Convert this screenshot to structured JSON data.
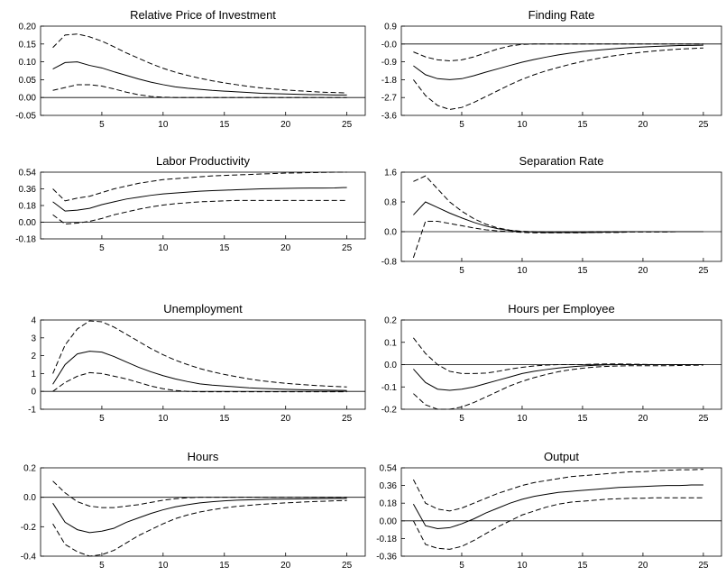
{
  "chart_data": [
    {
      "type": "line",
      "title": "Relative Price of Investment",
      "x": [
        1,
        2,
        3,
        4,
        5,
        6,
        7,
        8,
        9,
        10,
        11,
        12,
        13,
        14,
        15,
        16,
        17,
        18,
        19,
        20,
        21,
        22,
        23,
        24,
        25
      ],
      "series": [
        {
          "values": [
            0.08,
            0.098,
            0.1,
            0.09,
            0.083,
            0.072,
            0.062,
            0.052,
            0.043,
            0.036,
            0.03,
            0.026,
            0.023,
            0.02,
            0.018,
            0.016,
            0.014,
            0.012,
            0.011,
            0.01,
            0.009,
            0.008,
            0.008,
            0.007,
            0.007
          ],
          "style": "solid"
        },
        {
          "values": [
            0.14,
            0.175,
            0.178,
            0.17,
            0.158,
            0.142,
            0.125,
            0.11,
            0.095,
            0.082,
            0.071,
            0.062,
            0.054,
            0.047,
            0.041,
            0.036,
            0.031,
            0.027,
            0.024,
            0.021,
            0.019,
            0.017,
            0.015,
            0.014,
            0.013
          ],
          "style": "dashed"
        },
        {
          "values": [
            0.02,
            0.028,
            0.036,
            0.036,
            0.032,
            0.024,
            0.015,
            0.008,
            0.003,
            0.001,
            0.0,
            0.0,
            0.0,
            0.0,
            0.0,
            0.0,
            0.0,
            0.0,
            0.0,
            0.0,
            0.0,
            0.0,
            0.0,
            0.0,
            0.0
          ],
          "style": "dashed"
        }
      ],
      "ylim": [
        -0.05,
        0.2
      ],
      "yticks": [
        "0.20",
        "0.15",
        "0.10",
        "0.05",
        "0.00",
        "-0.05"
      ],
      "xticks": [
        "5",
        "10",
        "15",
        "20",
        "25"
      ]
    },
    {
      "type": "line",
      "title": "Finding Rate",
      "x": [
        1,
        2,
        3,
        4,
        5,
        6,
        7,
        8,
        9,
        10,
        11,
        12,
        13,
        14,
        15,
        16,
        17,
        18,
        19,
        20,
        21,
        22,
        23,
        24,
        25
      ],
      "series": [
        {
          "values": [
            -1.1,
            -1.55,
            -1.75,
            -1.8,
            -1.75,
            -1.6,
            -1.42,
            -1.25,
            -1.08,
            -0.92,
            -0.78,
            -0.66,
            -0.55,
            -0.46,
            -0.38,
            -0.32,
            -0.27,
            -0.22,
            -0.18,
            -0.15,
            -0.12,
            -0.1,
            -0.08,
            -0.07,
            -0.06
          ],
          "style": "solid"
        },
        {
          "values": [
            -1.8,
            -2.6,
            -3.1,
            -3.3,
            -3.2,
            -2.95,
            -2.65,
            -2.35,
            -2.05,
            -1.78,
            -1.55,
            -1.35,
            -1.18,
            -1.02,
            -0.88,
            -0.76,
            -0.65,
            -0.56,
            -0.48,
            -0.41,
            -0.35,
            -0.3,
            -0.26,
            -0.23,
            -0.2
          ],
          "style": "dashed"
        },
        {
          "values": [
            -0.4,
            -0.65,
            -0.8,
            -0.85,
            -0.8,
            -0.65,
            -0.45,
            -0.25,
            -0.1,
            -0.02,
            0.0,
            0.0,
            0.0,
            0.0,
            0.0,
            0.0,
            0.0,
            0.0,
            0.0,
            0.0,
            0.0,
            0.0,
            0.0,
            0.0,
            0.0
          ],
          "style": "dashed"
        }
      ],
      "ylim": [
        -3.6,
        0.9
      ],
      "yticks": [
        "0.9",
        "-0.0",
        "-0.9",
        "-1.8",
        "-2.7",
        "-3.6"
      ],
      "xticks": [
        "5",
        "10",
        "15",
        "20",
        "25"
      ]
    },
    {
      "type": "line",
      "title": "Labor Productivity",
      "x": [
        1,
        2,
        3,
        4,
        5,
        6,
        7,
        8,
        9,
        10,
        11,
        12,
        13,
        14,
        15,
        16,
        17,
        18,
        19,
        20,
        21,
        22,
        23,
        24,
        25
      ],
      "series": [
        {
          "values": [
            0.22,
            0.12,
            0.13,
            0.15,
            0.19,
            0.22,
            0.25,
            0.27,
            0.29,
            0.305,
            0.315,
            0.325,
            0.335,
            0.34,
            0.345,
            0.35,
            0.355,
            0.36,
            0.362,
            0.365,
            0.367,
            0.368,
            0.369,
            0.37,
            0.375
          ],
          "style": "solid"
        },
        {
          "values": [
            0.36,
            0.23,
            0.26,
            0.28,
            0.32,
            0.36,
            0.39,
            0.42,
            0.44,
            0.46,
            0.47,
            0.48,
            0.49,
            0.5,
            0.505,
            0.51,
            0.515,
            0.52,
            0.525,
            0.53,
            0.532,
            0.535,
            0.537,
            0.54,
            0.54
          ],
          "style": "dashed"
        },
        {
          "values": [
            0.08,
            -0.02,
            -0.01,
            0.01,
            0.04,
            0.08,
            0.11,
            0.14,
            0.165,
            0.185,
            0.2,
            0.21,
            0.22,
            0.225,
            0.23,
            0.235,
            0.235,
            0.235,
            0.235,
            0.235,
            0.235,
            0.235,
            0.235,
            0.235,
            0.235
          ],
          "style": "dashed"
        }
      ],
      "ylim": [
        -0.18,
        0.54
      ],
      "yticks": [
        "0.54",
        "0.36",
        "0.18",
        "0.00",
        "-0.18"
      ],
      "xticks": [
        "5",
        "10",
        "15",
        "20",
        "25"
      ]
    },
    {
      "type": "line",
      "title": "Separation Rate",
      "x": [
        1,
        2,
        3,
        4,
        5,
        6,
        7,
        8,
        9,
        10,
        11,
        12,
        13,
        14,
        15,
        16,
        17,
        18,
        19,
        20,
        21,
        22,
        23,
        24,
        25
      ],
      "series": [
        {
          "values": [
            0.45,
            0.8,
            0.65,
            0.5,
            0.37,
            0.25,
            0.15,
            0.08,
            0.03,
            0.0,
            -0.01,
            -0.02,
            -0.02,
            -0.02,
            -0.02,
            -0.02,
            -0.01,
            -0.01,
            0.0,
            0.0,
            0.0,
            0.0,
            0.0,
            0.0,
            0.0
          ],
          "style": "solid"
        },
        {
          "values": [
            1.35,
            1.5,
            1.15,
            0.8,
            0.55,
            0.35,
            0.2,
            0.1,
            0.04,
            0.01,
            0.0,
            -0.01,
            -0.01,
            -0.01,
            -0.01,
            0.0,
            0.0,
            0.0,
            0.0,
            0.0,
            0.0,
            0.0,
            0.0,
            0.0,
            0.0
          ],
          "style": "dashed"
        },
        {
          "values": [
            -0.7,
            0.28,
            0.28,
            0.22,
            0.16,
            0.1,
            0.05,
            0.02,
            0.0,
            -0.02,
            -0.03,
            -0.03,
            -0.03,
            -0.03,
            -0.03,
            -0.02,
            -0.02,
            -0.02,
            -0.01,
            -0.01,
            -0.01,
            -0.01,
            0.0,
            0.0,
            0.0
          ],
          "style": "dashed"
        }
      ],
      "ylim": [
        -0.8,
        1.6
      ],
      "yticks": [
        "1.6",
        "0.8",
        "0.0",
        "-0.8"
      ],
      "xticks": [
        "5",
        "10",
        "15",
        "20",
        "25"
      ]
    },
    {
      "type": "line",
      "title": "Unemployment",
      "x": [
        1,
        2,
        3,
        4,
        5,
        6,
        7,
        8,
        9,
        10,
        11,
        12,
        13,
        14,
        15,
        16,
        17,
        18,
        19,
        20,
        21,
        22,
        23,
        24,
        25
      ],
      "series": [
        {
          "values": [
            0.4,
            1.5,
            2.1,
            2.25,
            2.2,
            1.95,
            1.65,
            1.35,
            1.1,
            0.88,
            0.7,
            0.55,
            0.42,
            0.35,
            0.3,
            0.25,
            0.2,
            0.17,
            0.14,
            0.12,
            0.1,
            0.08,
            0.07,
            0.06,
            0.05
          ],
          "style": "solid"
        },
        {
          "values": [
            1.0,
            2.6,
            3.5,
            3.95,
            3.9,
            3.6,
            3.2,
            2.8,
            2.4,
            2.05,
            1.75,
            1.5,
            1.28,
            1.1,
            0.95,
            0.82,
            0.7,
            0.6,
            0.52,
            0.45,
            0.4,
            0.35,
            0.31,
            0.28,
            0.25
          ],
          "style": "dashed"
        },
        {
          "values": [
            0.0,
            0.5,
            0.85,
            1.05,
            1.0,
            0.85,
            0.7,
            0.5,
            0.3,
            0.15,
            0.05,
            0.0,
            -0.02,
            -0.02,
            -0.02,
            -0.02,
            -0.02,
            -0.02,
            -0.02,
            -0.02,
            -0.02,
            -0.02,
            -0.02,
            -0.02,
            -0.02
          ],
          "style": "dashed"
        }
      ],
      "ylim": [
        -1,
        4
      ],
      "yticks": [
        "4",
        "3",
        "2",
        "1",
        "0",
        "-1"
      ],
      "xticks": [
        "5",
        "10",
        "15",
        "20",
        "25"
      ]
    },
    {
      "type": "line",
      "title": "Hours per Employee",
      "x": [
        1,
        2,
        3,
        4,
        5,
        6,
        7,
        8,
        9,
        10,
        11,
        12,
        13,
        14,
        15,
        16,
        17,
        18,
        19,
        20,
        21,
        22,
        23,
        24,
        25
      ],
      "series": [
        {
          "values": [
            -0.02,
            -0.08,
            -0.11,
            -0.115,
            -0.11,
            -0.1,
            -0.085,
            -0.07,
            -0.055,
            -0.04,
            -0.03,
            -0.022,
            -0.015,
            -0.01,
            -0.006,
            -0.003,
            -0.001,
            0.0,
            0.0,
            0.0,
            0.0,
            0.0,
            0.0,
            0.0,
            0.0
          ],
          "style": "solid"
        },
        {
          "values": [
            0.12,
            0.05,
            0.0,
            -0.03,
            -0.04,
            -0.04,
            -0.038,
            -0.03,
            -0.02,
            -0.012,
            -0.006,
            -0.002,
            0.0,
            0.0,
            0.0,
            0.002,
            0.003,
            0.003,
            0.002,
            0.001,
            0.0,
            0.0,
            0.0,
            0.0,
            0.0
          ],
          "style": "dashed"
        },
        {
          "values": [
            -0.13,
            -0.18,
            -0.2,
            -0.2,
            -0.19,
            -0.17,
            -0.145,
            -0.12,
            -0.095,
            -0.075,
            -0.058,
            -0.044,
            -0.032,
            -0.023,
            -0.016,
            -0.011,
            -0.008,
            -0.006,
            -0.005,
            -0.005,
            -0.005,
            -0.005,
            -0.004,
            -0.003,
            -0.002
          ],
          "style": "dashed"
        }
      ],
      "ylim": [
        -0.2,
        0.2
      ],
      "yticks": [
        "0.2",
        "0.1",
        "0.0",
        "-0.1",
        "-0.2"
      ],
      "xticks": [
        "5",
        "10",
        "15",
        "20",
        "25"
      ]
    },
    {
      "type": "line",
      "title": "Hours",
      "x": [
        1,
        2,
        3,
        4,
        5,
        6,
        7,
        8,
        9,
        10,
        11,
        12,
        13,
        14,
        15,
        16,
        17,
        18,
        19,
        20,
        21,
        22,
        23,
        24,
        25
      ],
      "series": [
        {
          "values": [
            -0.04,
            -0.17,
            -0.22,
            -0.24,
            -0.23,
            -0.21,
            -0.17,
            -0.14,
            -0.11,
            -0.085,
            -0.065,
            -0.05,
            -0.038,
            -0.03,
            -0.024,
            -0.02,
            -0.017,
            -0.015,
            -0.013,
            -0.012,
            -0.011,
            -0.01,
            -0.009,
            -0.008,
            -0.008
          ],
          "style": "solid"
        },
        {
          "values": [
            0.11,
            0.03,
            -0.03,
            -0.06,
            -0.07,
            -0.07,
            -0.06,
            -0.05,
            -0.035,
            -0.02,
            -0.01,
            -0.003,
            0.0,
            0.0,
            0.0,
            0.0,
            0.0,
            0.0,
            0.0,
            0.0,
            0.0,
            0.0,
            0.0,
            0.0,
            0.0
          ],
          "style": "dashed"
        },
        {
          "values": [
            -0.18,
            -0.32,
            -0.37,
            -0.4,
            -0.39,
            -0.36,
            -0.31,
            -0.26,
            -0.22,
            -0.18,
            -0.145,
            -0.12,
            -0.1,
            -0.085,
            -0.072,
            -0.062,
            -0.055,
            -0.048,
            -0.043,
            -0.038,
            -0.034,
            -0.03,
            -0.027,
            -0.024,
            -0.022
          ],
          "style": "dashed"
        }
      ],
      "ylim": [
        -0.4,
        0.2
      ],
      "yticks": [
        "0.2",
        "0.0",
        "-0.2",
        "-0.4"
      ],
      "xticks": [
        "5",
        "10",
        "15",
        "20",
        "25"
      ]
    },
    {
      "type": "line",
      "title": "Output",
      "x": [
        1,
        2,
        3,
        4,
        5,
        6,
        7,
        8,
        9,
        10,
        11,
        12,
        13,
        14,
        15,
        16,
        17,
        18,
        19,
        20,
        21,
        22,
        23,
        24,
        25
      ],
      "series": [
        {
          "values": [
            0.17,
            -0.05,
            -0.08,
            -0.07,
            -0.03,
            0.02,
            0.08,
            0.13,
            0.18,
            0.22,
            0.25,
            0.27,
            0.29,
            0.3,
            0.31,
            0.32,
            0.33,
            0.34,
            0.345,
            0.35,
            0.355,
            0.36,
            0.36,
            0.365,
            0.365
          ],
          "style": "solid"
        },
        {
          "values": [
            0.42,
            0.18,
            0.12,
            0.1,
            0.13,
            0.18,
            0.23,
            0.28,
            0.32,
            0.36,
            0.39,
            0.41,
            0.43,
            0.45,
            0.46,
            0.47,
            0.48,
            0.49,
            0.5,
            0.5,
            0.51,
            0.515,
            0.52,
            0.52,
            0.525
          ],
          "style": "dashed"
        },
        {
          "values": [
            0.0,
            -0.24,
            -0.28,
            -0.29,
            -0.26,
            -0.2,
            -0.13,
            -0.06,
            0.0,
            0.06,
            0.1,
            0.14,
            0.17,
            0.19,
            0.2,
            0.21,
            0.22,
            0.225,
            0.23,
            0.23,
            0.235,
            0.235,
            0.235,
            0.235,
            0.235
          ],
          "style": "dashed"
        }
      ],
      "ylim": [
        -0.36,
        0.54
      ],
      "yticks": [
        "0.54",
        "0.36",
        "0.18",
        "0.00",
        "-0.18",
        "-0.36"
      ],
      "xticks": [
        "5",
        "10",
        "15",
        "20",
        "25"
      ]
    }
  ]
}
